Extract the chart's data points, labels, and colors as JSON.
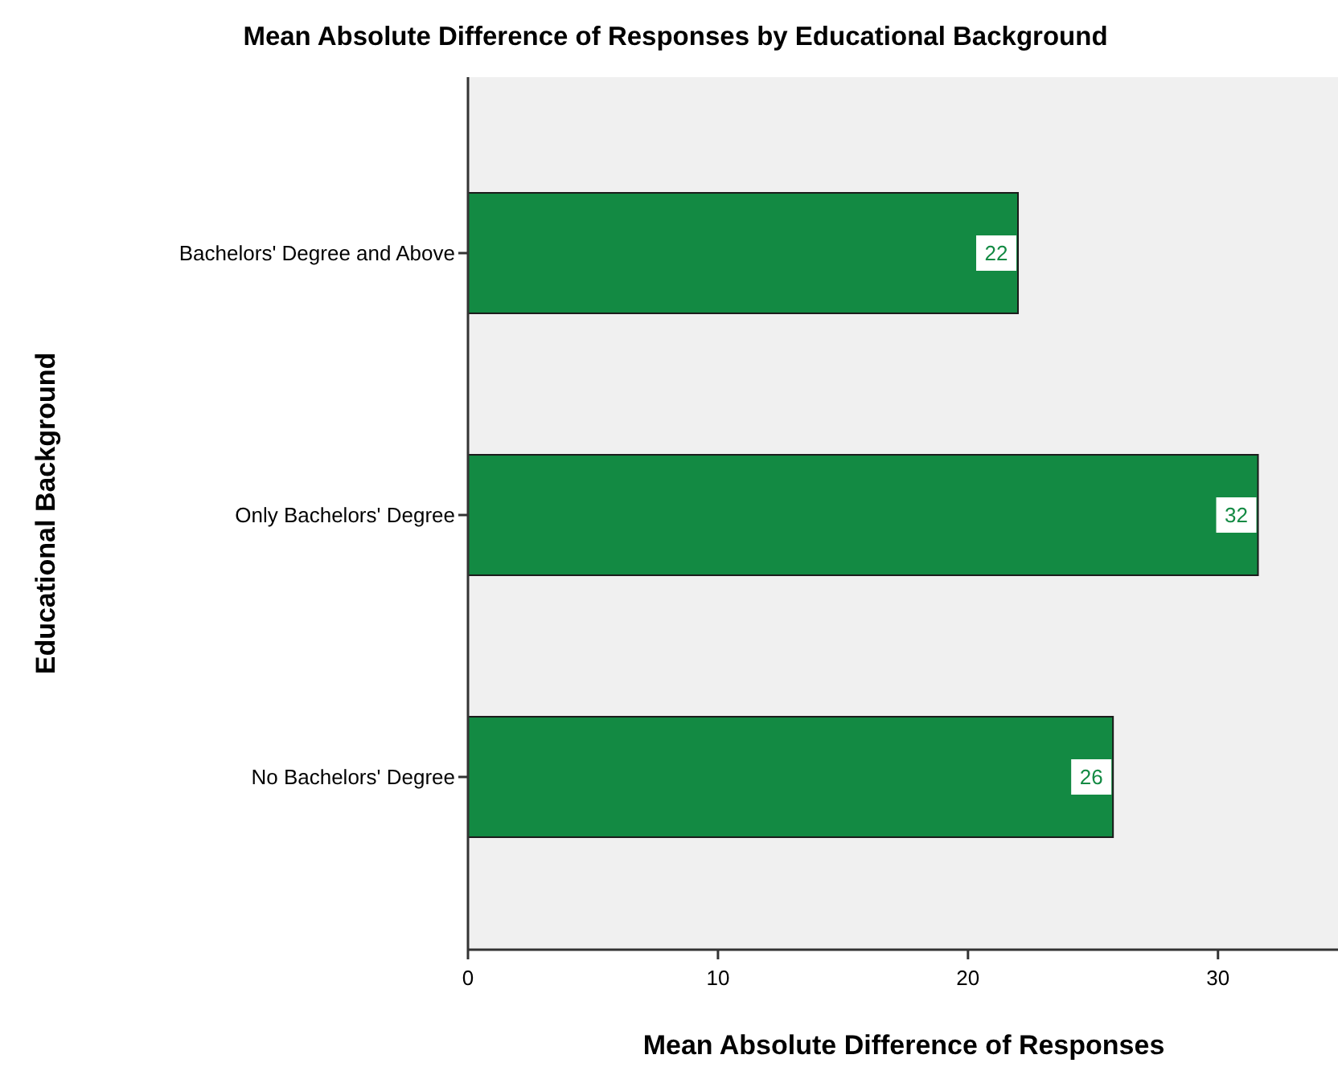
{
  "chart_data": {
    "type": "bar",
    "orientation": "horizontal",
    "title": "Mean Absolute Difference of Responses by Educational Background",
    "xlabel": "Mean Absolute Difference of Responses",
    "ylabel": "Educational Background",
    "categories": [
      "Bachelors' Degree and Above",
      "Only Bachelors' Degree",
      "No Bachelors' Degree"
    ],
    "values": [
      22,
      31.6,
      25.8
    ],
    "value_labels": [
      "22",
      "32",
      "26"
    ],
    "color": "#138a43",
    "xlim": [
      0,
      34.8
    ],
    "xticks": [
      0,
      10,
      20,
      30
    ],
    "grid": false
  }
}
